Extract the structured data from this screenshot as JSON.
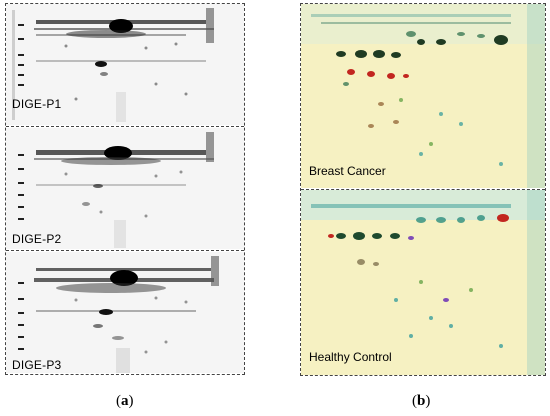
{
  "panel_a": {
    "gels": [
      {
        "label": "DIGE-P1"
      },
      {
        "label": "DIGE-P2"
      },
      {
        "label": "DIGE-P3"
      }
    ],
    "caption_open": "(",
    "caption_letter": "a",
    "caption_close": ")"
  },
  "panel_b": {
    "gels": [
      {
        "label": "Breast Cancer"
      },
      {
        "label": "Healthy Control"
      }
    ],
    "caption_open": "(",
    "caption_letter": "b",
    "caption_close": ")"
  },
  "colors": {
    "gel_gray_bg": "#f4f4f4",
    "gel_spot": "#111111",
    "gel_yellow_bg": "#f6f2c4",
    "spot_green": "#1f4f2a",
    "spot_red": "#c2261f",
    "spot_cyan": "#2f9a9a",
    "spot_purple": "#6a2fb5"
  }
}
